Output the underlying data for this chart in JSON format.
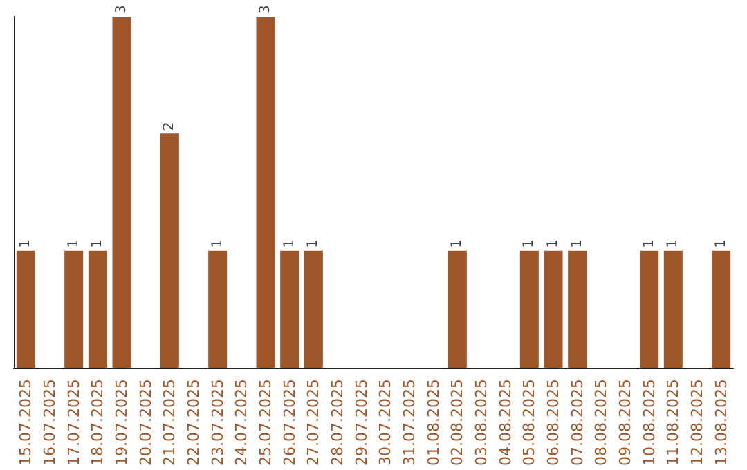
{
  "chart_data": {
    "type": "bar",
    "categories": [
      "15.07.2025",
      "16.07.2025",
      "17.07.2025",
      "18.07.2025",
      "19.07.2025",
      "20.07.2025",
      "21.07.2025",
      "22.07.2025",
      "23.07.2025",
      "24.07.2025",
      "25.07.2025",
      "26.07.2025",
      "27.07.2025",
      "28.07.2025",
      "29.07.2025",
      "30.07.2025",
      "31.07.2025",
      "01.08.2025",
      "02.08.2025",
      "03.08.2025",
      "04.08.2025",
      "05.08.2025",
      "06.08.2025",
      "07.08.2025",
      "08.08.2025",
      "09.08.2025",
      "10.08.2025",
      "11.08.2025",
      "12.08.2025",
      "13.08.2025"
    ],
    "values": [
      1,
      0,
      1,
      1,
      3,
      0,
      2,
      0,
      1,
      0,
      3,
      1,
      1,
      0,
      0,
      0,
      0,
      0,
      1,
      0,
      0,
      1,
      1,
      1,
      0,
      0,
      1,
      1,
      0,
      1
    ],
    "value_labels": [
      "1",
      null,
      "1",
      "1",
      "3",
      null,
      "2",
      null,
      "1",
      null,
      "3",
      "1",
      "1",
      null,
      null,
      null,
      null,
      null,
      "1",
      null,
      null,
      "1",
      "1",
      "1",
      null,
      null,
      "1",
      "1",
      null,
      "1"
    ],
    "color": "#a0572a",
    "tick_labels": "x"
  }
}
